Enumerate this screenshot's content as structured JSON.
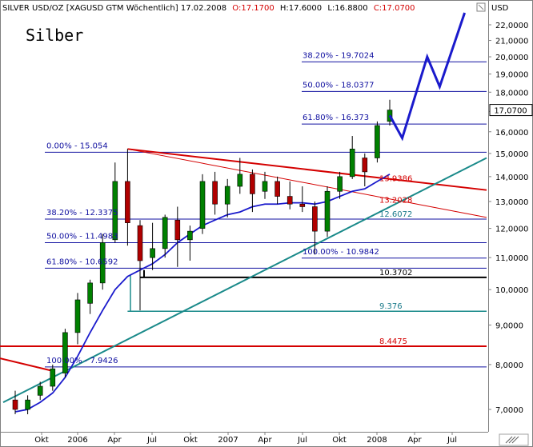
{
  "header": {
    "instrument": "SILVER USD/OZ [XAGUSD GTM  Wöchentlich] 17.02.2008",
    "ohlc": [
      {
        "label": "O:17.1700",
        "color": "#d40000"
      },
      {
        "label": "H:17.6000",
        "color": "#000000"
      },
      {
        "label": "L:16.8800",
        "color": "#000000"
      },
      {
        "label": "C:17.0700",
        "color": "#d40000"
      }
    ],
    "currency": "USD"
  },
  "title": "Silber",
  "price_box": "17,0700",
  "chart_data": {
    "type": "candlestick",
    "title": "Silber",
    "ylabel": "USD",
    "yscale": "log",
    "ylim": [
      6.5,
      23.5
    ],
    "yticks": [
      "7,0000",
      "8,0000",
      "9,0000",
      "10,0000",
      "11,0000",
      "12,0000",
      "13,0000",
      "14,0000",
      "15,0000",
      "16,0000",
      "17,0000",
      "18,0000",
      "19,0000",
      "20,0000",
      "21,0000",
      "22,0000"
    ],
    "xticks": [
      "Okt",
      "2006",
      "Apr",
      "Jul",
      "Okt",
      "2007",
      "Apr",
      "Jul",
      "Okt",
      "2008",
      "Apr",
      "Jul"
    ],
    "horizontal_levels": [
      {
        "label": "38.20% - 19.7024",
        "value": 19.7024,
        "color": "#1010a0"
      },
      {
        "label": "50.00% - 18.0377",
        "value": 18.0377,
        "color": "#1010a0"
      },
      {
        "label": "61.80% - 16.373",
        "value": 16.373,
        "color": "#1010a0"
      },
      {
        "label": "0.00% - 15.054",
        "value": 15.054,
        "color": "#1010a0"
      },
      {
        "label": "38.20% - 12.3375",
        "value": 12.3375,
        "color": "#1010a0"
      },
      {
        "label": "50.00% - 11.4983",
        "value": 11.4983,
        "color": "#1010a0"
      },
      {
        "label": "61.80% - 10.6592",
        "value": 10.6592,
        "color": "#1010a0"
      },
      {
        "label": "100.00% - 10.9842",
        "value": 10.9842,
        "color": "#1010a0"
      },
      {
        "label": "100.00% - 7.9426",
        "value": 7.9426,
        "color": "#1010a0"
      }
    ],
    "price_labels": [
      {
        "label": "13.9386",
        "value": 13.9386,
        "color": "#d40000"
      },
      {
        "label": "13.2028",
        "value": 13.2028,
        "color": "#d40000"
      },
      {
        "label": "12.6072",
        "value": 12.6072,
        "color": "#1a7a8a"
      },
      {
        "label": "10.3702",
        "value": 10.3702,
        "color": "#000000"
      },
      {
        "label": "9.376",
        "value": 9.376,
        "color": "#1a7a8a"
      },
      {
        "label": "8.4475",
        "value": 8.4475,
        "color": "#d40000"
      }
    ],
    "candles": [
      {
        "t": "2005-08",
        "o": 7.2,
        "h": 7.4,
        "l": 6.9,
        "c": 7.0
      },
      {
        "t": "2005-09",
        "o": 7.0,
        "h": 7.3,
        "l": 6.9,
        "c": 7.2
      },
      {
        "t": "2005-10",
        "o": 7.3,
        "h": 7.6,
        "l": 7.2,
        "c": 7.5
      },
      {
        "t": "2005-11",
        "o": 7.5,
        "h": 8.0,
        "l": 7.4,
        "c": 7.9
      },
      {
        "t": "2005-12",
        "o": 7.8,
        "h": 8.9,
        "l": 7.7,
        "c": 8.8
      },
      {
        "t": "2006-01",
        "o": 8.8,
        "h": 9.9,
        "l": 8.5,
        "c": 9.7
      },
      {
        "t": "2006-02",
        "o": 9.6,
        "h": 10.3,
        "l": 9.3,
        "c": 10.2
      },
      {
        "t": "2006-03",
        "o": 10.2,
        "h": 11.8,
        "l": 10.0,
        "c": 11.5
      },
      {
        "t": "2006-04",
        "o": 11.6,
        "h": 14.6,
        "l": 11.5,
        "c": 13.8
      },
      {
        "t": "2006-05",
        "o": 13.8,
        "h": 15.2,
        "l": 11.4,
        "c": 12.2
      },
      {
        "t": "2006-06",
        "o": 12.1,
        "h": 12.3,
        "l": 9.4,
        "c": 10.9
      },
      {
        "t": "2006-07",
        "o": 11.0,
        "h": 12.2,
        "l": 10.6,
        "c": 11.3
      },
      {
        "t": "2006-08",
        "o": 11.3,
        "h": 12.5,
        "l": 11.0,
        "c": 12.4
      },
      {
        "t": "2006-09",
        "o": 12.3,
        "h": 12.8,
        "l": 10.7,
        "c": 11.6
      },
      {
        "t": "2006-10",
        "o": 11.6,
        "h": 12.1,
        "l": 10.9,
        "c": 11.9
      },
      {
        "t": "2006-11",
        "o": 12.0,
        "h": 14.1,
        "l": 11.8,
        "c": 13.8
      },
      {
        "t": "2006-12",
        "o": 13.8,
        "h": 14.2,
        "l": 12.5,
        "c": 12.9
      },
      {
        "t": "2007-01",
        "o": 12.9,
        "h": 13.9,
        "l": 12.4,
        "c": 13.6
      },
      {
        "t": "2007-02",
        "o": 13.6,
        "h": 14.8,
        "l": 13.3,
        "c": 14.1
      },
      {
        "t": "2007-03",
        "o": 14.1,
        "h": 14.3,
        "l": 12.6,
        "c": 13.3
      },
      {
        "t": "2007-04",
        "o": 13.4,
        "h": 14.2,
        "l": 13.1,
        "c": 13.8
      },
      {
        "t": "2007-05",
        "o": 13.8,
        "h": 14.0,
        "l": 12.9,
        "c": 13.2
      },
      {
        "t": "2007-06",
        "o": 13.2,
        "h": 13.8,
        "l": 12.7,
        "c": 12.9
      },
      {
        "t": "2007-07",
        "o": 12.9,
        "h": 13.6,
        "l": 12.6,
        "c": 12.8
      },
      {
        "t": "2007-08",
        "o": 12.8,
        "h": 13.0,
        "l": 11.1,
        "c": 11.9
      },
      {
        "t": "2007-09",
        "o": 11.9,
        "h": 13.6,
        "l": 11.7,
        "c": 13.4
      },
      {
        "t": "2007-10",
        "o": 13.4,
        "h": 14.2,
        "l": 13.1,
        "c": 14.0
      },
      {
        "t": "2007-11",
        "o": 14.0,
        "h": 15.8,
        "l": 13.9,
        "c": 15.2
      },
      {
        "t": "2007-12",
        "o": 14.8,
        "h": 15.0,
        "l": 13.6,
        "c": 14.2
      },
      {
        "t": "2008-01",
        "o": 14.8,
        "h": 16.5,
        "l": 14.6,
        "c": 16.3
      },
      {
        "t": "2008-02",
        "o": 16.5,
        "h": 17.6,
        "l": 16.3,
        "c": 17.07
      }
    ],
    "moving_average": [
      {
        "t": "2005-08",
        "v": 6.95
      },
      {
        "t": "2005-09",
        "v": 7.0
      },
      {
        "t": "2005-10",
        "v": 7.15
      },
      {
        "t": "2005-11",
        "v": 7.35
      },
      {
        "t": "2005-12",
        "v": 7.7
      },
      {
        "t": "2006-01",
        "v": 8.2
      },
      {
        "t": "2006-02",
        "v": 8.8
      },
      {
        "t": "2006-03",
        "v": 9.4
      },
      {
        "t": "2006-04",
        "v": 10.0
      },
      {
        "t": "2006-05",
        "v": 10.4
      },
      {
        "t": "2006-06",
        "v": 10.6
      },
      {
        "t": "2006-07",
        "v": 10.8
      },
      {
        "t": "2006-08",
        "v": 11.1
      },
      {
        "t": "2006-09",
        "v": 11.5
      },
      {
        "t": "2006-10",
        "v": 11.8
      },
      {
        "t": "2006-11",
        "v": 12.1
      },
      {
        "t": "2006-12",
        "v": 12.3
      },
      {
        "t": "2007-01",
        "v": 12.5
      },
      {
        "t": "2007-02",
        "v": 12.6
      },
      {
        "t": "2007-03",
        "v": 12.8
      },
      {
        "t": "2007-04",
        "v": 12.9
      },
      {
        "t": "2007-05",
        "v": 12.9
      },
      {
        "t": "2007-06",
        "v": 12.95
      },
      {
        "t": "2007-07",
        "v": 12.95
      },
      {
        "t": "2007-08",
        "v": 12.9
      },
      {
        "t": "2007-09",
        "v": 13.0
      },
      {
        "t": "2007-10",
        "v": 13.2
      },
      {
        "t": "2007-11",
        "v": 13.4
      },
      {
        "t": "2007-12",
        "v": 13.5
      },
      {
        "t": "2008-01",
        "v": 13.8
      },
      {
        "t": "2008-02",
        "v": 14.1
      }
    ],
    "trendlines": [
      {
        "color": "#d40000",
        "width": 2,
        "points": [
          {
            "t": "2006-05",
            "v": 15.2
          },
          {
            "t": "2008-09",
            "v": 13.45
          }
        ]
      },
      {
        "color": "#d40000",
        "width": 1,
        "points": [
          {
            "t": "2006-05",
            "v": 15.2
          },
          {
            "t": "2008-09",
            "v": 12.4
          }
        ]
      },
      {
        "color": "#d40000",
        "width": 2,
        "points": [
          {
            "t": "2005-07",
            "v": 8.15
          },
          {
            "t": "2005-11",
            "v": 7.85
          }
        ]
      },
      {
        "color": "#1a8a8a",
        "width": 2,
        "points": [
          {
            "t": "2005-08",
            "v": 7.15
          },
          {
            "t": "2008-09",
            "v": 14.8
          }
        ]
      }
    ],
    "segments": [
      {
        "color": "#000000",
        "width": 2,
        "from": "2006-06",
        "to": "2008-09",
        "value": 10.3702
      },
      {
        "color": "#1a8a8a",
        "width": 1.5,
        "from": "2006-05",
        "to": "2008-09",
        "value": 9.376
      },
      {
        "color": "#d40000",
        "width": 2,
        "from": "2005-07",
        "to": "2008-09",
        "value": 8.4475
      }
    ],
    "projection": [
      {
        "t": "2008-02",
        "v": 16.8
      },
      {
        "t": "2008-03",
        "v": 15.7
      },
      {
        "t": "2008-05",
        "v": 20.0
      },
      {
        "t": "2008-06",
        "v": 18.3
      },
      {
        "t": "2008-08",
        "v": 22.8
      }
    ]
  }
}
